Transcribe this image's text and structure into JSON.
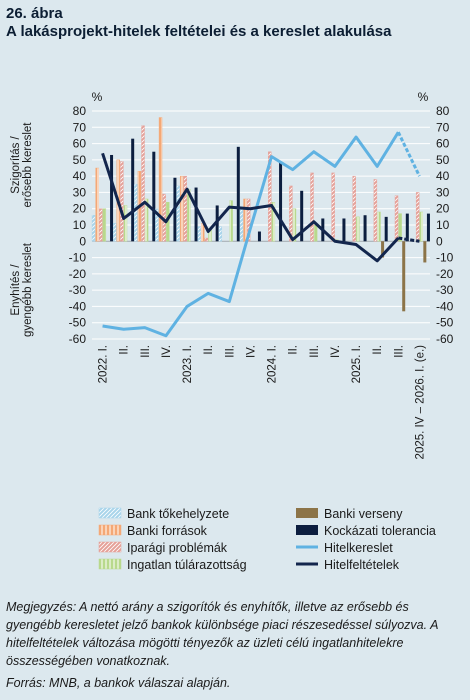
{
  "figure": {
    "number": "26. ábra",
    "title": "A lakásprojekt-hitelek feltételei  és a kereslet alakulása"
  },
  "note": "Megjegyzés: A nettó arány a szigorítók és enyhítők, illetve az erősebb és gyengébb keresletet jelző bankok különbsége piaci részesedéssel súlyozva. A hitelfeltételek változása mögötti tényezők az üzleti célú ingatlanhitelekre összességében vonatkoznak.",
  "source": "Forrás: MNB, a bankok válaszai alapján.",
  "chart_data": {
    "type": "bar",
    "x": [
      "2022. I.",
      "II.",
      "III.",
      "IV.",
      "2023. I.",
      "II.",
      "III.",
      "IV.",
      "2024. I.",
      "II.",
      "III.",
      "IV.",
      "2025. I.",
      "II.",
      "III.",
      "2025. IV – 2026. I. (e.)"
    ],
    "xticks_shown": [
      "2022. I.",
      "II.",
      "III.",
      "IV.",
      "2023. I.",
      "II.",
      "III.",
      "IV.",
      "2024. I.",
      "II.",
      "III.",
      "IV.",
      "2025. I.",
      "II.",
      "III.",
      "2025. IV – 2026. I. (e.)"
    ],
    "ylim": [
      -60,
      80
    ],
    "yticks": [
      80,
      70,
      60,
      50,
      40,
      30,
      20,
      10,
      0,
      -10,
      -20,
      -30,
      -40,
      -50,
      -60
    ],
    "yunit_left": "%",
    "yunit_right": "%",
    "ylabel_upper": "Szigorítás / erősebb kereslet",
    "ylabel_lower": "Enyhítés / gyengébb kereslet",
    "grid": true,
    "legend_position": "bottom",
    "bar_series": [
      {
        "name": "Bank tőkehelyzete",
        "color": "#a8d4ea",
        "pattern": "hatch",
        "values": [
          16,
          11,
          35,
          20,
          34,
          9,
          9,
          21,
          0,
          0,
          0,
          0,
          0,
          0,
          0,
          0
        ]
      },
      {
        "name": "Banki források",
        "color": "#f4a876",
        "pattern": "vstripe",
        "values": [
          45,
          50,
          43,
          76,
          40,
          11,
          0,
          26,
          0,
          0,
          0,
          0,
          0,
          0,
          0,
          0
        ]
      },
      {
        "name": "Iparági problémák",
        "color": "#e5a098",
        "pattern": "hatch",
        "values": [
          20,
          49,
          71,
          29,
          40,
          2,
          0,
          26,
          55,
          34,
          42,
          42,
          40,
          38,
          28,
          30
        ]
      },
      {
        "name": "Ingatlan túlárazottság",
        "color": "#b8d98c",
        "pattern": "vstripe",
        "values": [
          20,
          22,
          26,
          24,
          32,
          8,
          25,
          0,
          24,
          20,
          10,
          1,
          15,
          18,
          17,
          18
        ]
      },
      {
        "name": "Banki verseny",
        "color": "#8c7448",
        "pattern": "solid",
        "values": [
          0,
          0,
          0,
          0,
          0,
          0,
          0,
          0,
          0,
          0,
          0,
          0,
          0,
          -10,
          -43,
          -13
        ]
      },
      {
        "name": "Kockázati tolerancia",
        "color": "#0c1e3f",
        "pattern": "solid",
        "values": [
          53,
          63,
          55,
          39,
          33,
          22,
          58,
          6,
          49,
          31,
          14,
          14,
          16,
          15,
          17,
          17
        ]
      }
    ],
    "line_series": [
      {
        "name": "Hitelkereslet",
        "color": "#5fb2e2",
        "values": [
          -52,
          -54,
          -53,
          -58,
          -40,
          -32,
          -37,
          8,
          52,
          44,
          55,
          46,
          64,
          46,
          67,
          40
        ],
        "dashed_last_segment": true
      },
      {
        "name": "Hitelfeltételek",
        "color": "#13264d",
        "values": [
          54,
          14,
          24,
          12,
          32,
          6,
          21,
          20,
          22,
          1,
          12,
          0,
          -2,
          -12,
          2,
          0
        ],
        "dashed_last_segment": true
      }
    ]
  }
}
